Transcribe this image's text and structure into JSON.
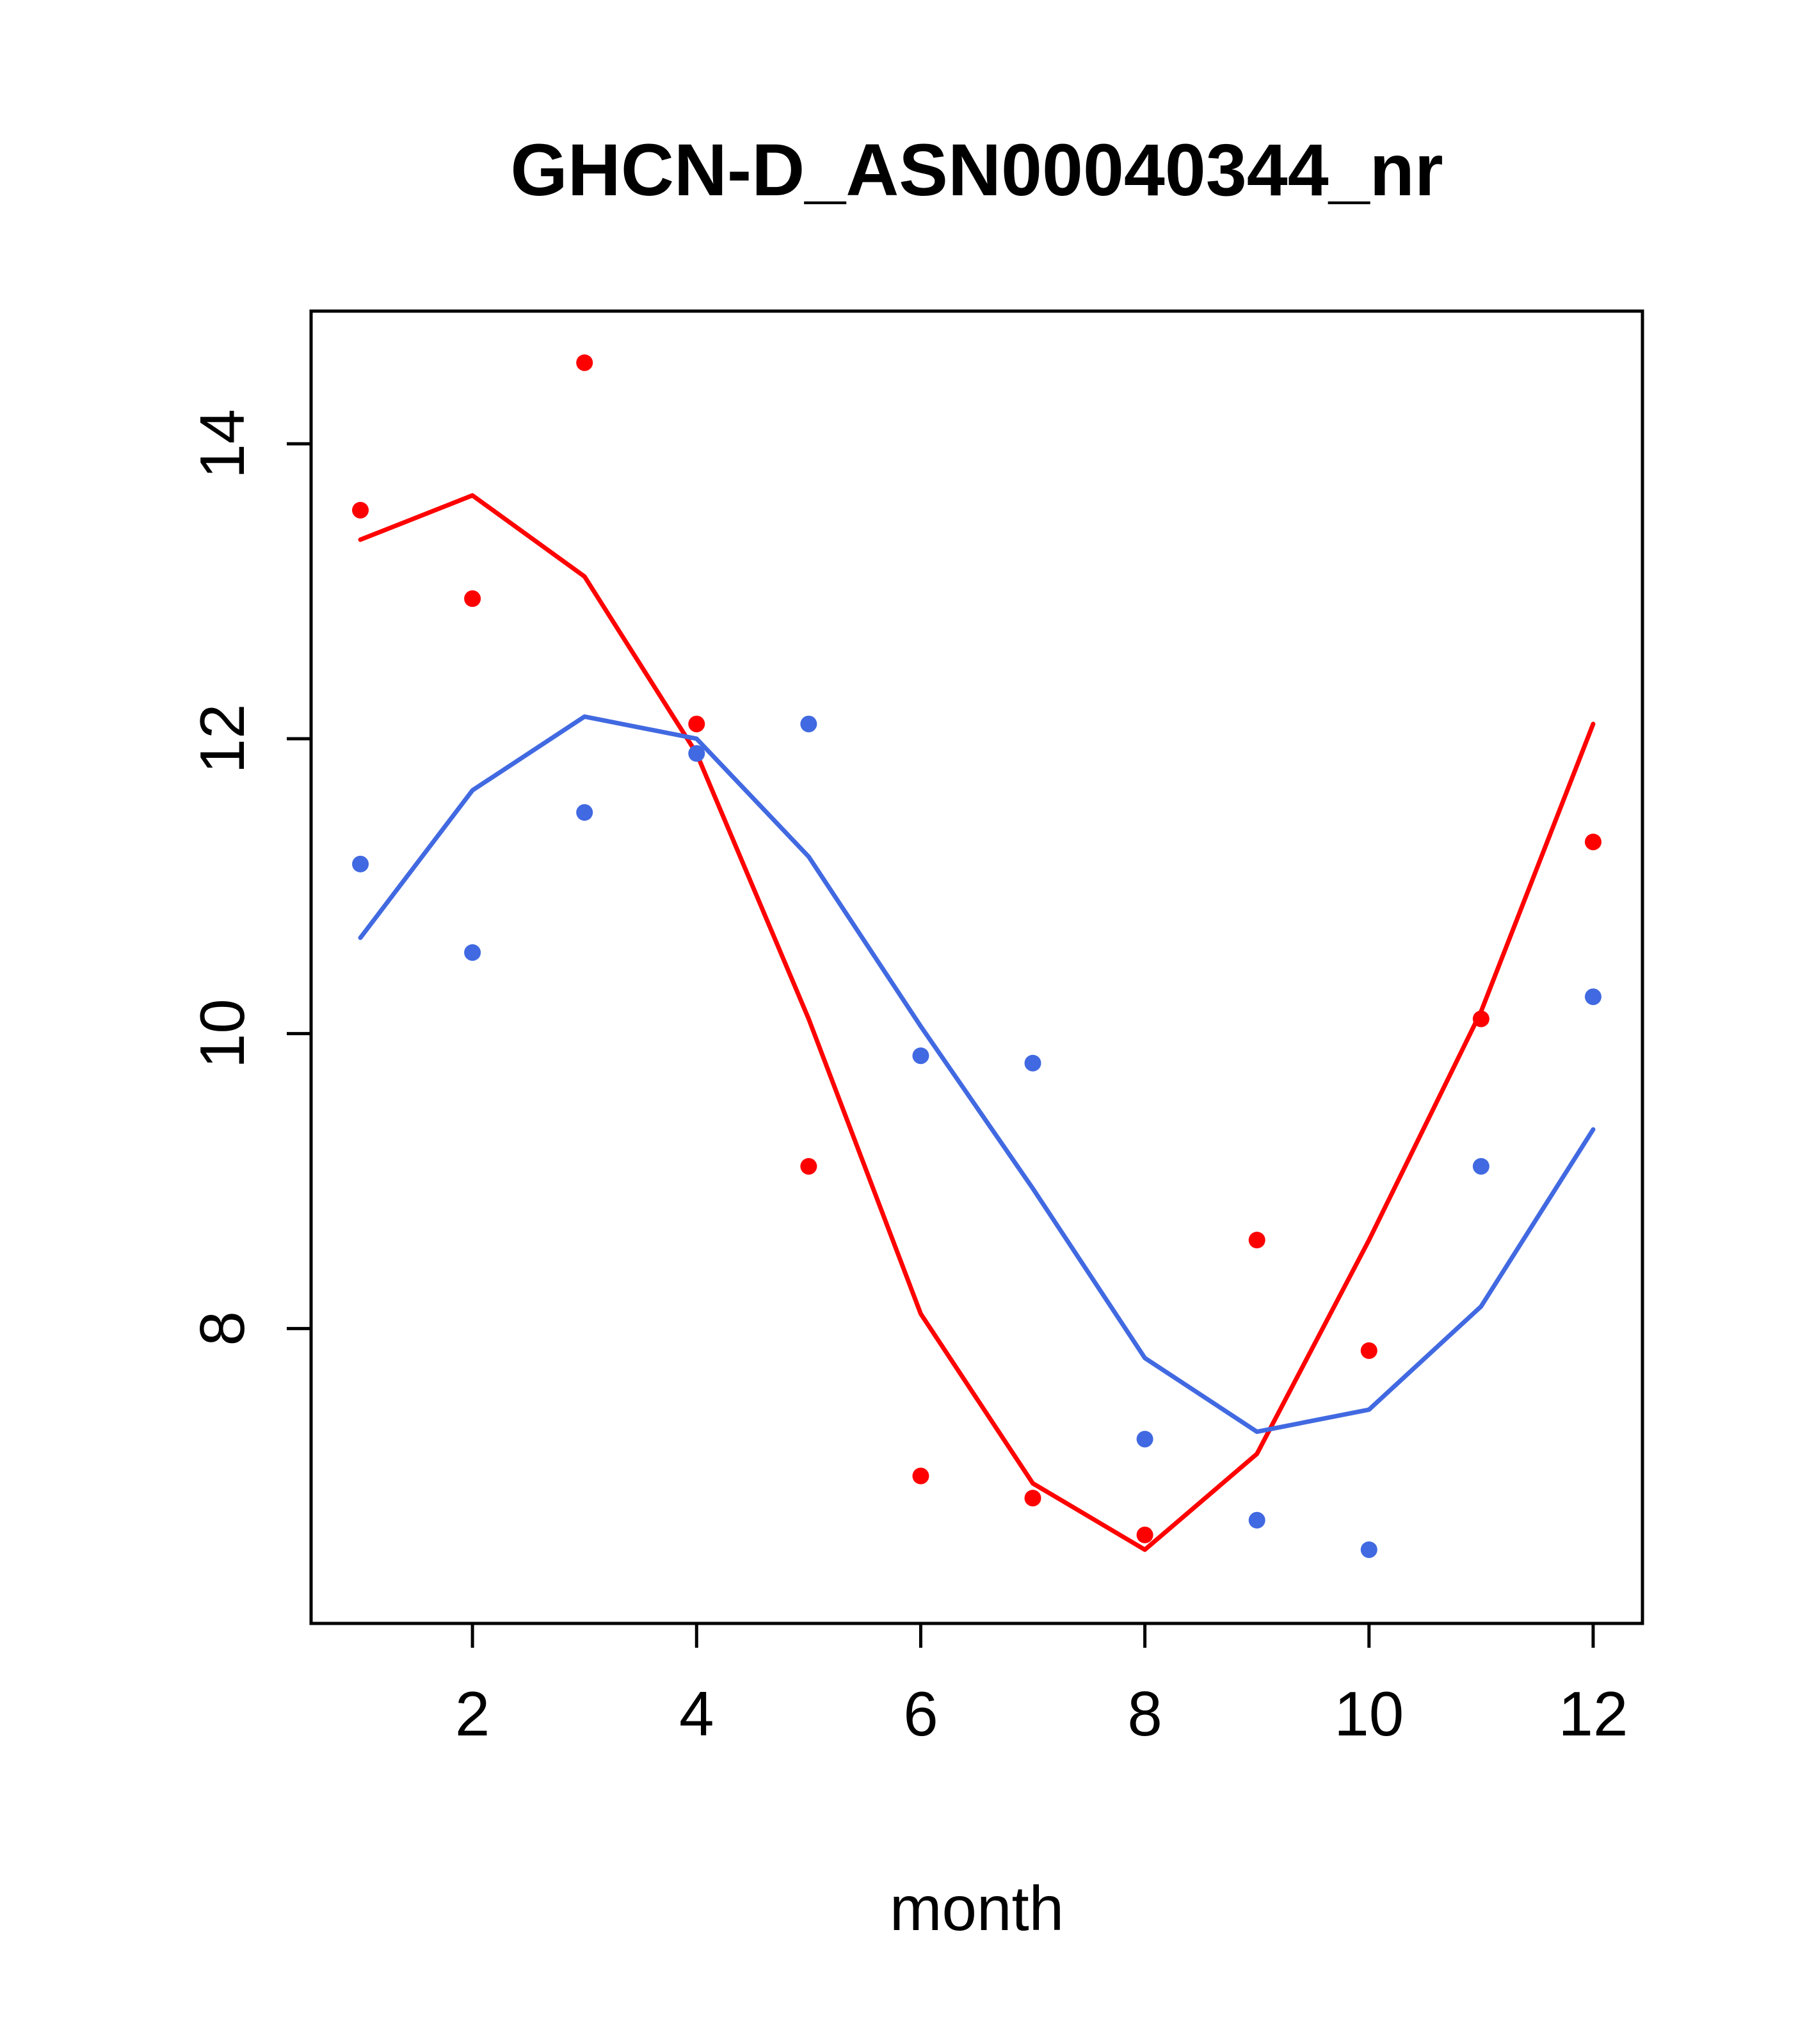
{
  "chart_data": {
    "type": "line",
    "title": "GHCN-D_ASN00040344_nr",
    "xlabel": "month",
    "ylabel": "",
    "x": [
      1,
      2,
      3,
      4,
      5,
      6,
      7,
      8,
      9,
      10,
      11,
      12
    ],
    "xlim": [
      0.56,
      12.44
    ],
    "ylim": [
      6.0,
      14.9
    ],
    "xticks": [
      2,
      4,
      6,
      8,
      10,
      12
    ],
    "yticks": [
      8,
      10,
      12,
      14
    ],
    "grid": false,
    "legend": "none",
    "colors": {
      "red": "#ff0000",
      "blue": "#4169E1",
      "frame": "#000000"
    },
    "series": [
      {
        "name": "red-points",
        "style": "points",
        "color": "#ff0000",
        "values": [
          13.55,
          12.95,
          14.55,
          12.1,
          9.1,
          7.0,
          6.85,
          6.6,
          8.6,
          7.85,
          10.1,
          11.3
        ]
      },
      {
        "name": "red-line",
        "style": "line",
        "color": "#ff0000",
        "values": [
          13.35,
          13.65,
          13.1,
          11.9,
          10.1,
          8.1,
          6.95,
          6.5,
          7.15,
          8.6,
          10.15,
          12.1
        ]
      },
      {
        "name": "blue-points",
        "style": "points",
        "color": "#4169E1",
        "values": [
          11.15,
          10.55,
          11.5,
          11.9,
          12.1,
          9.85,
          9.8,
          7.25,
          6.7,
          6.5,
          9.1,
          10.25
        ]
      },
      {
        "name": "blue-line",
        "style": "line",
        "color": "#4169E1",
        "values": [
          10.65,
          11.65,
          12.15,
          12.0,
          11.2,
          10.05,
          8.95,
          7.8,
          7.3,
          7.45,
          8.15,
          9.35
        ]
      }
    ]
  }
}
